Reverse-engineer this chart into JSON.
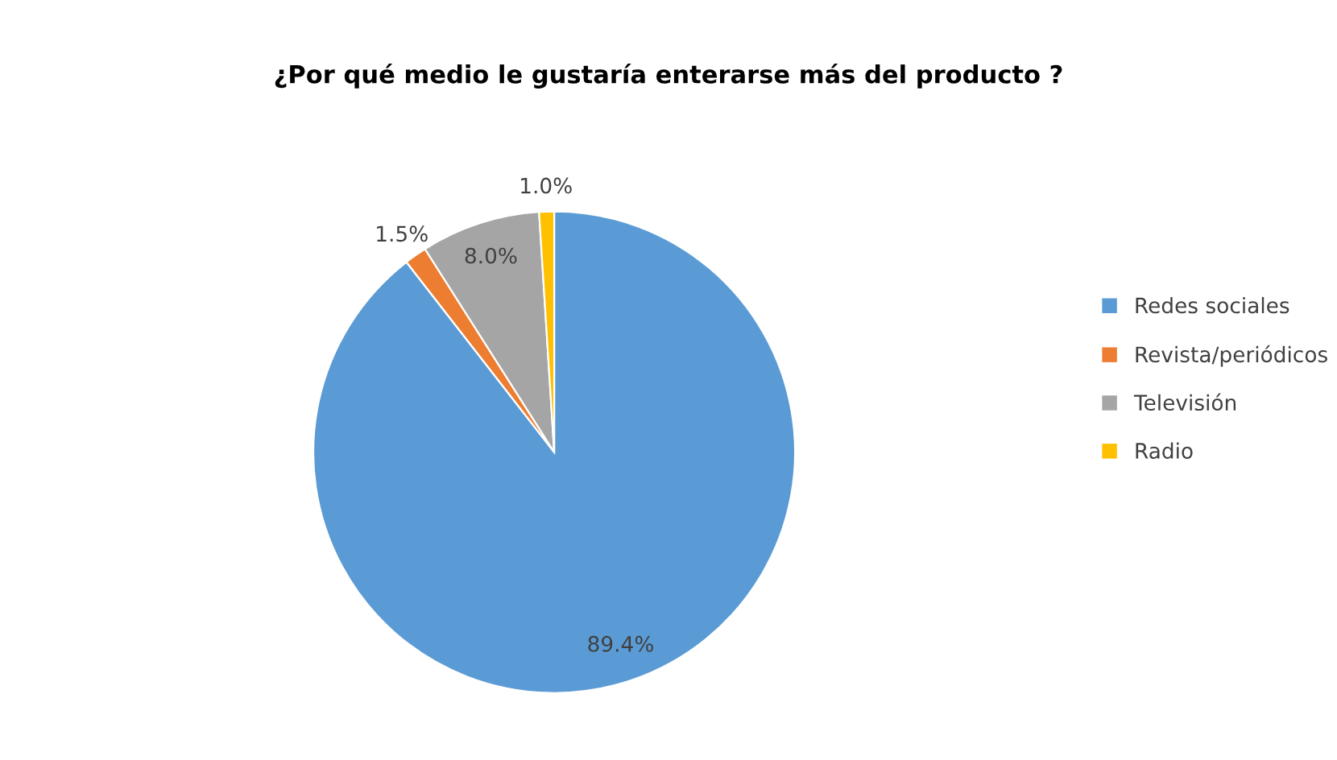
{
  "chart_data": {
    "type": "pie",
    "title": "¿Por qué medio le gustaría enterarse más del producto ?",
    "categories": [
      "Redes sociales",
      "Revista/periódicos",
      "Televisión",
      "Radio"
    ],
    "values": [
      89.4,
      1.5,
      8.0,
      1.0
    ],
    "value_labels": [
      "89.4%",
      "1.5%",
      "8.0%",
      "1.0%"
    ],
    "colors": [
      "#5b9bd5",
      "#ed7d31",
      "#a5a5a5",
      "#ffc000"
    ],
    "legend": "right"
  }
}
